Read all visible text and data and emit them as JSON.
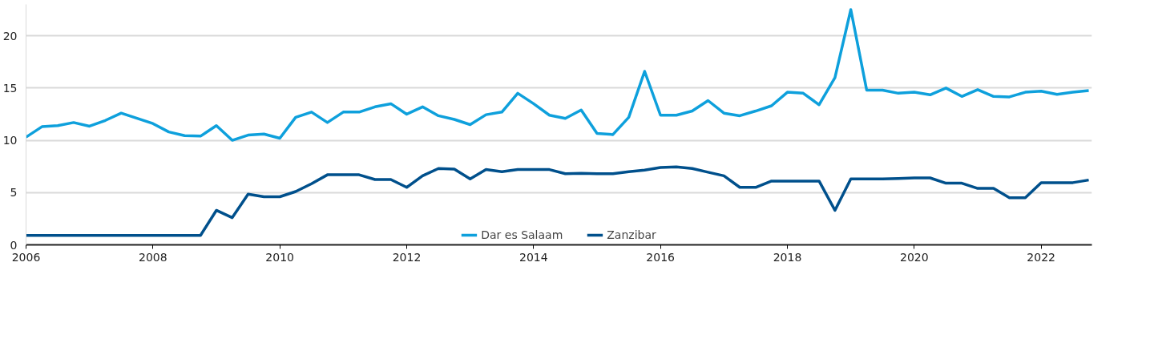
{
  "chart_data": {
    "type": "line",
    "x": [
      2006,
      2006.25,
      2006.5,
      2006.75,
      2007,
      2007.25,
      2007.5,
      2007.75,
      2008,
      2008.25,
      2008.5,
      2008.75,
      2009,
      2009.25,
      2009.5,
      2009.75,
      2010,
      2010.25,
      2010.5,
      2010.75,
      2011,
      2011.25,
      2011.5,
      2011.75,
      2012,
      2012.25,
      2012.5,
      2012.75,
      2013,
      2013.25,
      2013.5,
      2013.75,
      2014,
      2014.25,
      2014.5,
      2014.75,
      2015,
      2015.25,
      2015.5,
      2015.75,
      2016,
      2016.25,
      2016.5,
      2016.75,
      2017,
      2017.25,
      2017.5,
      2017.75,
      2018,
      2018.25,
      2018.5,
      2018.75,
      2019,
      2019.25,
      2019.5,
      2019.75,
      2020,
      2020.25,
      2020.5,
      2020.75,
      2021,
      2021.25,
      2021.5,
      2021.75,
      2022,
      2022.25,
      2022.5,
      2022.75
    ],
    "series": [
      {
        "name": "Dar es Salaam",
        "color": "#0ea0dc",
        "values": [
          10.3,
          11.3,
          11.4,
          11.7,
          11.35,
          11.9,
          12.6,
          12.1,
          11.6,
          10.8,
          10.45,
          10.4,
          11.4,
          10.0,
          10.5,
          10.6,
          10.2,
          12.2,
          12.7,
          11.7,
          12.7,
          12.7,
          13.2,
          13.5,
          12.5,
          13.2,
          12.35,
          12.0,
          11.5,
          12.45,
          12.7,
          14.5,
          13.5,
          12.4,
          12.1,
          12.9,
          10.65,
          10.55,
          12.2,
          16.6,
          12.4,
          12.4,
          12.8,
          13.8,
          12.6,
          12.35,
          12.8,
          13.3,
          14.6,
          14.5,
          13.4,
          16.0,
          22.5,
          14.8,
          14.8,
          14.5,
          14.6,
          14.35,
          15.0,
          14.2,
          14.85,
          14.2,
          14.15,
          14.6,
          14.7,
          14.4,
          14.6,
          14.75
        ]
      },
      {
        "name": "Zanzibar",
        "color": "#00508c",
        "values": [
          0.9,
          0.9,
          0.9,
          0.9,
          0.9,
          0.9,
          0.9,
          0.9,
          0.9,
          0.9,
          0.9,
          0.9,
          3.3,
          2.6,
          4.85,
          4.6,
          4.6,
          5.1,
          5.85,
          6.7,
          6.7,
          6.7,
          6.25,
          6.25,
          5.5,
          6.6,
          7.3,
          7.25,
          6.3,
          7.2,
          7.0,
          7.2,
          7.2,
          7.2,
          6.8,
          6.85,
          6.8,
          6.8,
          7.0,
          7.15,
          7.4,
          7.45,
          7.3,
          6.95,
          6.6,
          5.5,
          5.5,
          6.1,
          6.1,
          6.1,
          6.1,
          3.3,
          6.3,
          6.3,
          6.3,
          6.35,
          6.4,
          6.4,
          5.9,
          5.9,
          5.4,
          5.4,
          4.5,
          4.5,
          5.95,
          5.95,
          5.95,
          6.2
        ]
      }
    ],
    "xlim": [
      2006,
      2022.8
    ],
    "xticks": [
      2006,
      2008,
      2010,
      2012,
      2014,
      2016,
      2018,
      2020,
      2022
    ],
    "ylim": [
      0,
      23
    ],
    "yticks": [
      0,
      5,
      10,
      15,
      20
    ],
    "grid": "y",
    "legend": "bottom"
  }
}
